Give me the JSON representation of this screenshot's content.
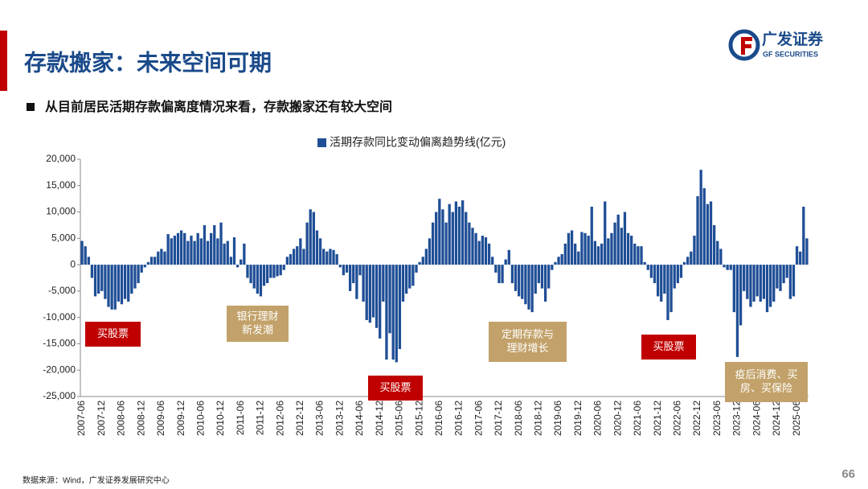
{
  "header": {
    "title": "存款搬家：未来空间可期",
    "subtitle": "从目前居民活期存款偏离度情况来看，存款搬家还有较大空间",
    "logo_cn": "广发证券",
    "logo_en": "GF SECURITIES"
  },
  "footer": {
    "source": "数据来源：Wind，广发证券发展研究中心",
    "page": "66"
  },
  "chart_data": {
    "type": "bar",
    "categories": [
      "2007-06",
      null,
      null,
      null,
      null,
      null,
      "2007-12",
      null,
      null,
      null,
      null,
      null,
      "2008-06",
      null,
      null,
      null,
      null,
      null,
      "2008-12",
      null,
      null,
      null,
      null,
      null,
      "2009-06",
      null,
      null,
      null,
      null,
      null,
      "2009-12",
      null,
      null,
      null,
      null,
      null,
      "2010-06",
      null,
      null,
      null,
      null,
      null,
      "2010-12",
      null,
      null,
      null,
      null,
      null,
      "2011-06",
      null,
      null,
      null,
      null,
      null,
      "2011-12",
      null,
      null,
      null,
      null,
      null,
      "2012-06",
      null,
      null,
      null,
      null,
      null,
      "2012-12",
      null,
      null,
      null,
      null,
      null,
      "2013-06",
      null,
      null,
      null,
      null,
      null,
      "2013-12",
      null,
      null,
      null,
      null,
      null,
      "2014-06",
      null,
      null,
      null,
      null,
      null,
      "2014-12",
      null,
      null,
      null,
      null,
      null,
      "2015-06",
      null,
      null,
      null,
      null,
      null,
      "2015-12",
      null,
      null,
      null,
      null,
      null,
      "2016-06",
      null,
      null,
      null,
      null,
      null,
      "2016-12",
      null,
      null,
      null,
      null,
      null,
      "2017-06",
      null,
      null,
      null,
      null,
      null,
      "2017-12",
      null,
      null,
      null,
      null,
      null,
      "2018-06",
      null,
      null,
      null,
      null,
      null,
      "2018-12",
      null,
      null,
      null,
      null,
      null,
      "2019-06",
      null,
      null,
      null,
      null,
      null,
      "2019-12",
      null,
      null,
      null,
      null,
      null,
      "2020-06",
      null,
      null,
      null,
      null,
      null,
      "2020-12",
      null,
      null,
      null,
      null,
      null,
      "2021-06",
      null,
      null,
      null,
      null,
      null,
      "2021-12",
      null,
      null,
      null,
      null,
      null,
      "2022-06",
      null,
      null,
      null,
      null,
      null,
      "2022-12",
      null,
      null,
      null,
      null,
      null,
      "2023-06",
      null,
      null,
      null,
      null,
      null,
      "2023-12",
      null,
      null,
      null,
      null,
      null,
      "2024-06",
      null,
      null,
      null,
      null,
      null,
      "2024-12",
      null,
      null,
      null,
      null,
      null,
      "2025-06",
      null,
      null,
      null
    ],
    "series": [
      {
        "name": "活期存款同比变动偏离趋势线(亿元)",
        "color": "#1f4e96",
        "values": [
          4500,
          3500,
          1500,
          -2500,
          -6000,
          -5500,
          -5000,
          -6500,
          -8000,
          -8500,
          -8500,
          -7000,
          -7500,
          -6500,
          -7000,
          -5500,
          -4500,
          -3500,
          -1500,
          -500,
          500,
          1500,
          1500,
          2500,
          3000,
          2500,
          5800,
          5000,
          5500,
          6000,
          6500,
          6000,
          4500,
          5500,
          4500,
          6000,
          5000,
          7500,
          4500,
          6000,
          7500,
          5000,
          8000,
          4000,
          4500,
          1500,
          5200,
          -500,
          1000,
          4000,
          -2500,
          -3500,
          -4500,
          -5500,
          -6000,
          -4000,
          -3500,
          -2500,
          -2500,
          -2200,
          -2000,
          -1000,
          1500,
          2000,
          3000,
          3500,
          5000,
          3000,
          8000,
          10500,
          10000,
          6500,
          5000,
          3000,
          2500,
          3000,
          2800,
          2000,
          -500,
          -2000,
          -1500,
          -5000,
          -3500,
          -6500,
          -2000,
          -7000,
          -10500,
          -11000,
          -10000,
          -12000,
          -14000,
          -7000,
          -18000,
          -13000,
          -18000,
          -18500,
          -16000,
          -7000,
          -5500,
          -4500,
          -4000,
          -1500,
          500,
          1500,
          3000,
          5000,
          8000,
          10000,
          12500,
          10500,
          8000,
          11500,
          10000,
          12000,
          11000,
          12200,
          10000,
          8000,
          7000,
          6000,
          4500,
          5500,
          5200,
          4000,
          1500,
          -1500,
          -3500,
          -3500,
          1000,
          2800,
          -3500,
          -5000,
          -6000,
          -6500,
          -7500,
          -8500,
          -9000,
          -5500,
          -3500,
          -4500,
          -7000,
          -4500,
          -1000,
          500,
          1500,
          2000,
          4000,
          6000,
          6500,
          4000,
          2500,
          6200,
          6000,
          5500,
          11000,
          4500,
          3500,
          4000,
          12000,
          5000,
          6000,
          8000,
          9500,
          7000,
          10000,
          6000,
          5500,
          4000,
          3500,
          3500,
          500,
          -1000,
          -2500,
          -3500,
          -6000,
          -7000,
          -5500,
          -10500,
          -9000,
          -4500,
          -3500,
          -2500,
          500,
          1500,
          2500,
          5500,
          13000,
          18000,
          14500,
          11500,
          12000,
          7500,
          4500,
          3000,
          -500,
          -1000,
          -1000,
          -9000,
          -17500,
          -11500,
          -5000,
          -6500,
          -8000,
          -7000,
          -6000,
          -7000,
          -6500,
          -9000,
          -8000,
          -7000,
          -4500,
          -5000,
          -3500,
          -2500,
          -6500,
          -6000,
          3500,
          2500,
          11000,
          5000
        ]
      }
    ],
    "ylim": [
      -25000,
      20000
    ],
    "yticks": [
      {
        "value": -25000,
        "label": "-25,000"
      },
      {
        "value": -20000,
        "label": "-20,000"
      },
      {
        "value": -15000,
        "label": "-15,000"
      },
      {
        "value": -10000,
        "label": "-10,000"
      },
      {
        "value": -5000,
        "label": "-5,000"
      },
      0,
      {
        "value": 5000,
        "label": "5,000"
      },
      {
        "value": 10000,
        "label": "10,000"
      },
      {
        "value": 15000,
        "label": "15,000"
      },
      {
        "value": 20000,
        "label": "20,000"
      }
    ],
    "legend": "top",
    "annotations": [
      {
        "lines": [
          "买股票"
        ],
        "color": "#c00000"
      },
      {
        "lines": [
          "银行理财",
          "新发潮"
        ],
        "color": "#c2a26a"
      },
      {
        "lines": [
          "买股票"
        ],
        "color": "#c00000"
      },
      {
        "lines": [
          "定期存款与",
          "理财增长"
        ],
        "color": "#c2a26a"
      },
      {
        "lines": [
          "买股票"
        ],
        "color": "#c00000"
      },
      {
        "lines": [
          "疫后消费、买",
          "房、买保险"
        ],
        "color": "#c2a26a"
      }
    ]
  }
}
